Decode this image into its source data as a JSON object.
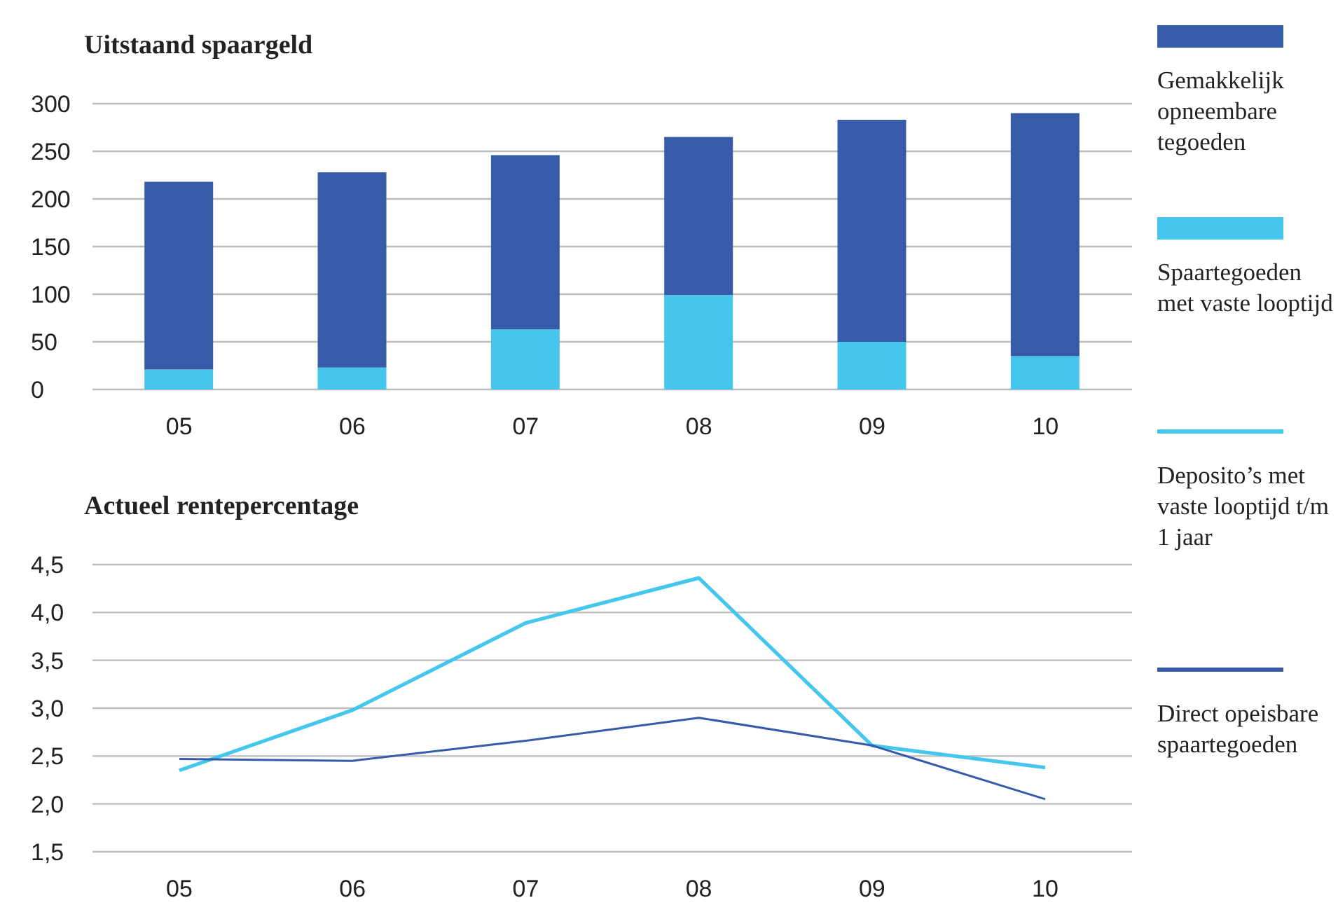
{
  "chart_data": [
    {
      "type": "bar",
      "title": "Uitstaand spaargeld",
      "categories": [
        "05",
        "06",
        "07",
        "08",
        "09",
        "10"
      ],
      "stacked": true,
      "series": [
        {
          "name": "Spaartegoeden met vaste looptijd",
          "color": "#45c6ed",
          "values": [
            21,
            23,
            63,
            99,
            50,
            35
          ]
        },
        {
          "name": "Gemakkelijk opneembare tegoeden",
          "color": "#365ba9",
          "values": [
            197,
            205,
            183,
            166,
            233,
            255
          ]
        }
      ],
      "ylim": [
        0,
        300
      ],
      "yticks": [
        0,
        50,
        100,
        150,
        200,
        250,
        300
      ],
      "grid": "y",
      "legend": "right"
    },
    {
      "type": "line",
      "title": "Actueel rentepercentage",
      "categories": [
        "05",
        "06",
        "07",
        "08",
        "09",
        "10"
      ],
      "series": [
        {
          "name": "Deposito’s met vaste looptijd t/m 1 jaar",
          "color": "#45c6ed",
          "values": [
            2.35,
            2.98,
            3.89,
            4.36,
            2.61,
            2.38
          ]
        },
        {
          "name": "Direct opeisbare spaartegoeden",
          "color": "#365ba9",
          "values": [
            2.47,
            2.45,
            2.66,
            2.9,
            2.61,
            2.05
          ]
        }
      ],
      "ylim": [
        1.5,
        4.5
      ],
      "yticks": [
        {
          "value": 1.5,
          "label": "1,5"
        },
        {
          "value": 2,
          "label": "2,0"
        },
        {
          "value": 2.5,
          "label": "2,5"
        },
        {
          "value": 3,
          "label": "3,0"
        },
        {
          "value": 3.5,
          "label": "3,5"
        },
        {
          "value": 4,
          "label": "4,0"
        },
        {
          "value": 4.5,
          "label": "4,5"
        }
      ],
      "grid": "y",
      "legend": "right",
      "marker": "none",
      "line_style": "solid"
    }
  ]
}
